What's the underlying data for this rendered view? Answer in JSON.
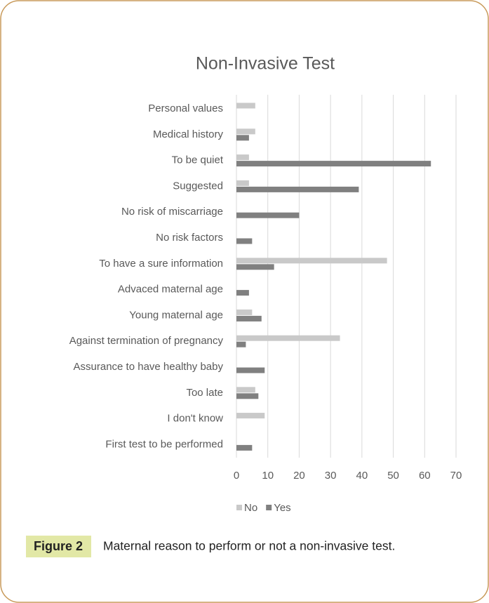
{
  "chart_data": {
    "type": "bar",
    "orientation": "horizontal",
    "title": "Non-Invasive Test",
    "categories": [
      "Personal values",
      "Medical history",
      "To be quiet",
      "Suggested",
      "No risk of miscarriage",
      "No risk factors",
      "To have a sure information",
      "Advaced maternal age",
      "Young maternal age",
      "Against termination of pregnancy",
      "Assurance to have healthy baby",
      "Too late",
      "I don't know",
      "First test to be performed"
    ],
    "series": [
      {
        "name": "No",
        "color": "#c9c9c9",
        "values": [
          6,
          6,
          4,
          4,
          0,
          0,
          48,
          0,
          5,
          33,
          0,
          6,
          9,
          0
        ]
      },
      {
        "name": "Yes",
        "color": "#808080",
        "values": [
          0,
          4,
          62,
          39,
          20,
          5,
          12,
          4,
          8,
          3,
          9,
          7,
          0,
          5
        ]
      }
    ],
    "xlim": [
      0,
      70
    ],
    "xticks": [
      0,
      10,
      20,
      30,
      40,
      50,
      60,
      70
    ],
    "grid": true,
    "legend": "bottom"
  },
  "caption": {
    "label": "Figure 2",
    "text": "Maternal reason to perform or not a non-invasive test."
  }
}
